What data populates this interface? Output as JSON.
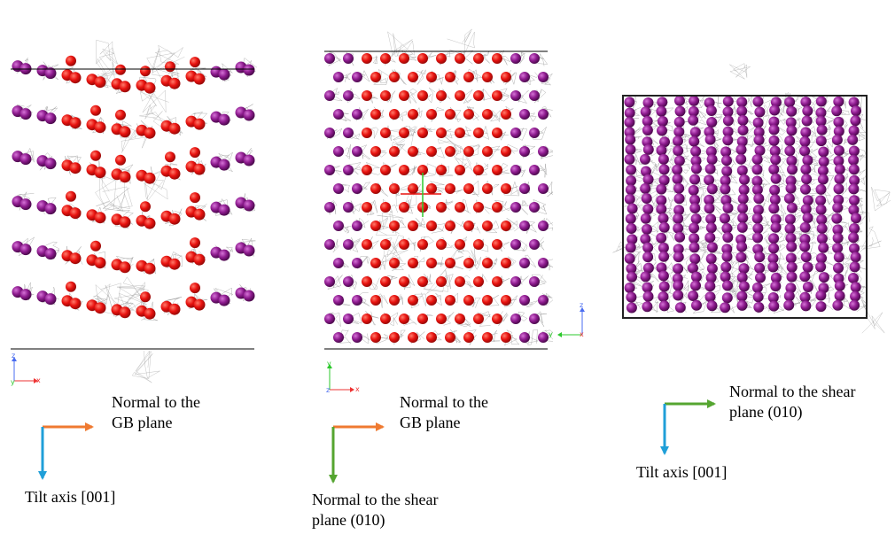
{
  "colors": {
    "gb_atom": "#e8120f",
    "bulk_atom": "#8e1b8f",
    "trajectory": "#9a9a9a",
    "orange_arrow": "#ef7a31",
    "blue_arrow": "#1f9fd8",
    "green_arrow": "#55a530"
  },
  "icons": [
    "triad-axis-icon",
    "coordinate-arrow-icon",
    "atom-sphere-icon"
  ],
  "panels": {
    "p1": {
      "triad": {
        "z": "z",
        "y": "y",
        "x": "x"
      },
      "arrow_right_label": [
        "Normal to the",
        "GB plane"
      ],
      "arrow_down_label": "Tilt axis [001]"
    },
    "p2": {
      "triad": {
        "y": "y",
        "z": "z",
        "x": "x"
      },
      "arrow_right_label": [
        "Normal to the",
        "GB plane"
      ],
      "arrow_down_label": [
        "Normal to the shear",
        "plane (010)"
      ]
    },
    "p3": {
      "triad": {
        "z": "z",
        "y": "y",
        "x": "x"
      },
      "arrow_right_label": [
        "Normal to the shear",
        "plane (010)"
      ],
      "arrow_down_label": "Tilt axis [001]"
    }
  }
}
